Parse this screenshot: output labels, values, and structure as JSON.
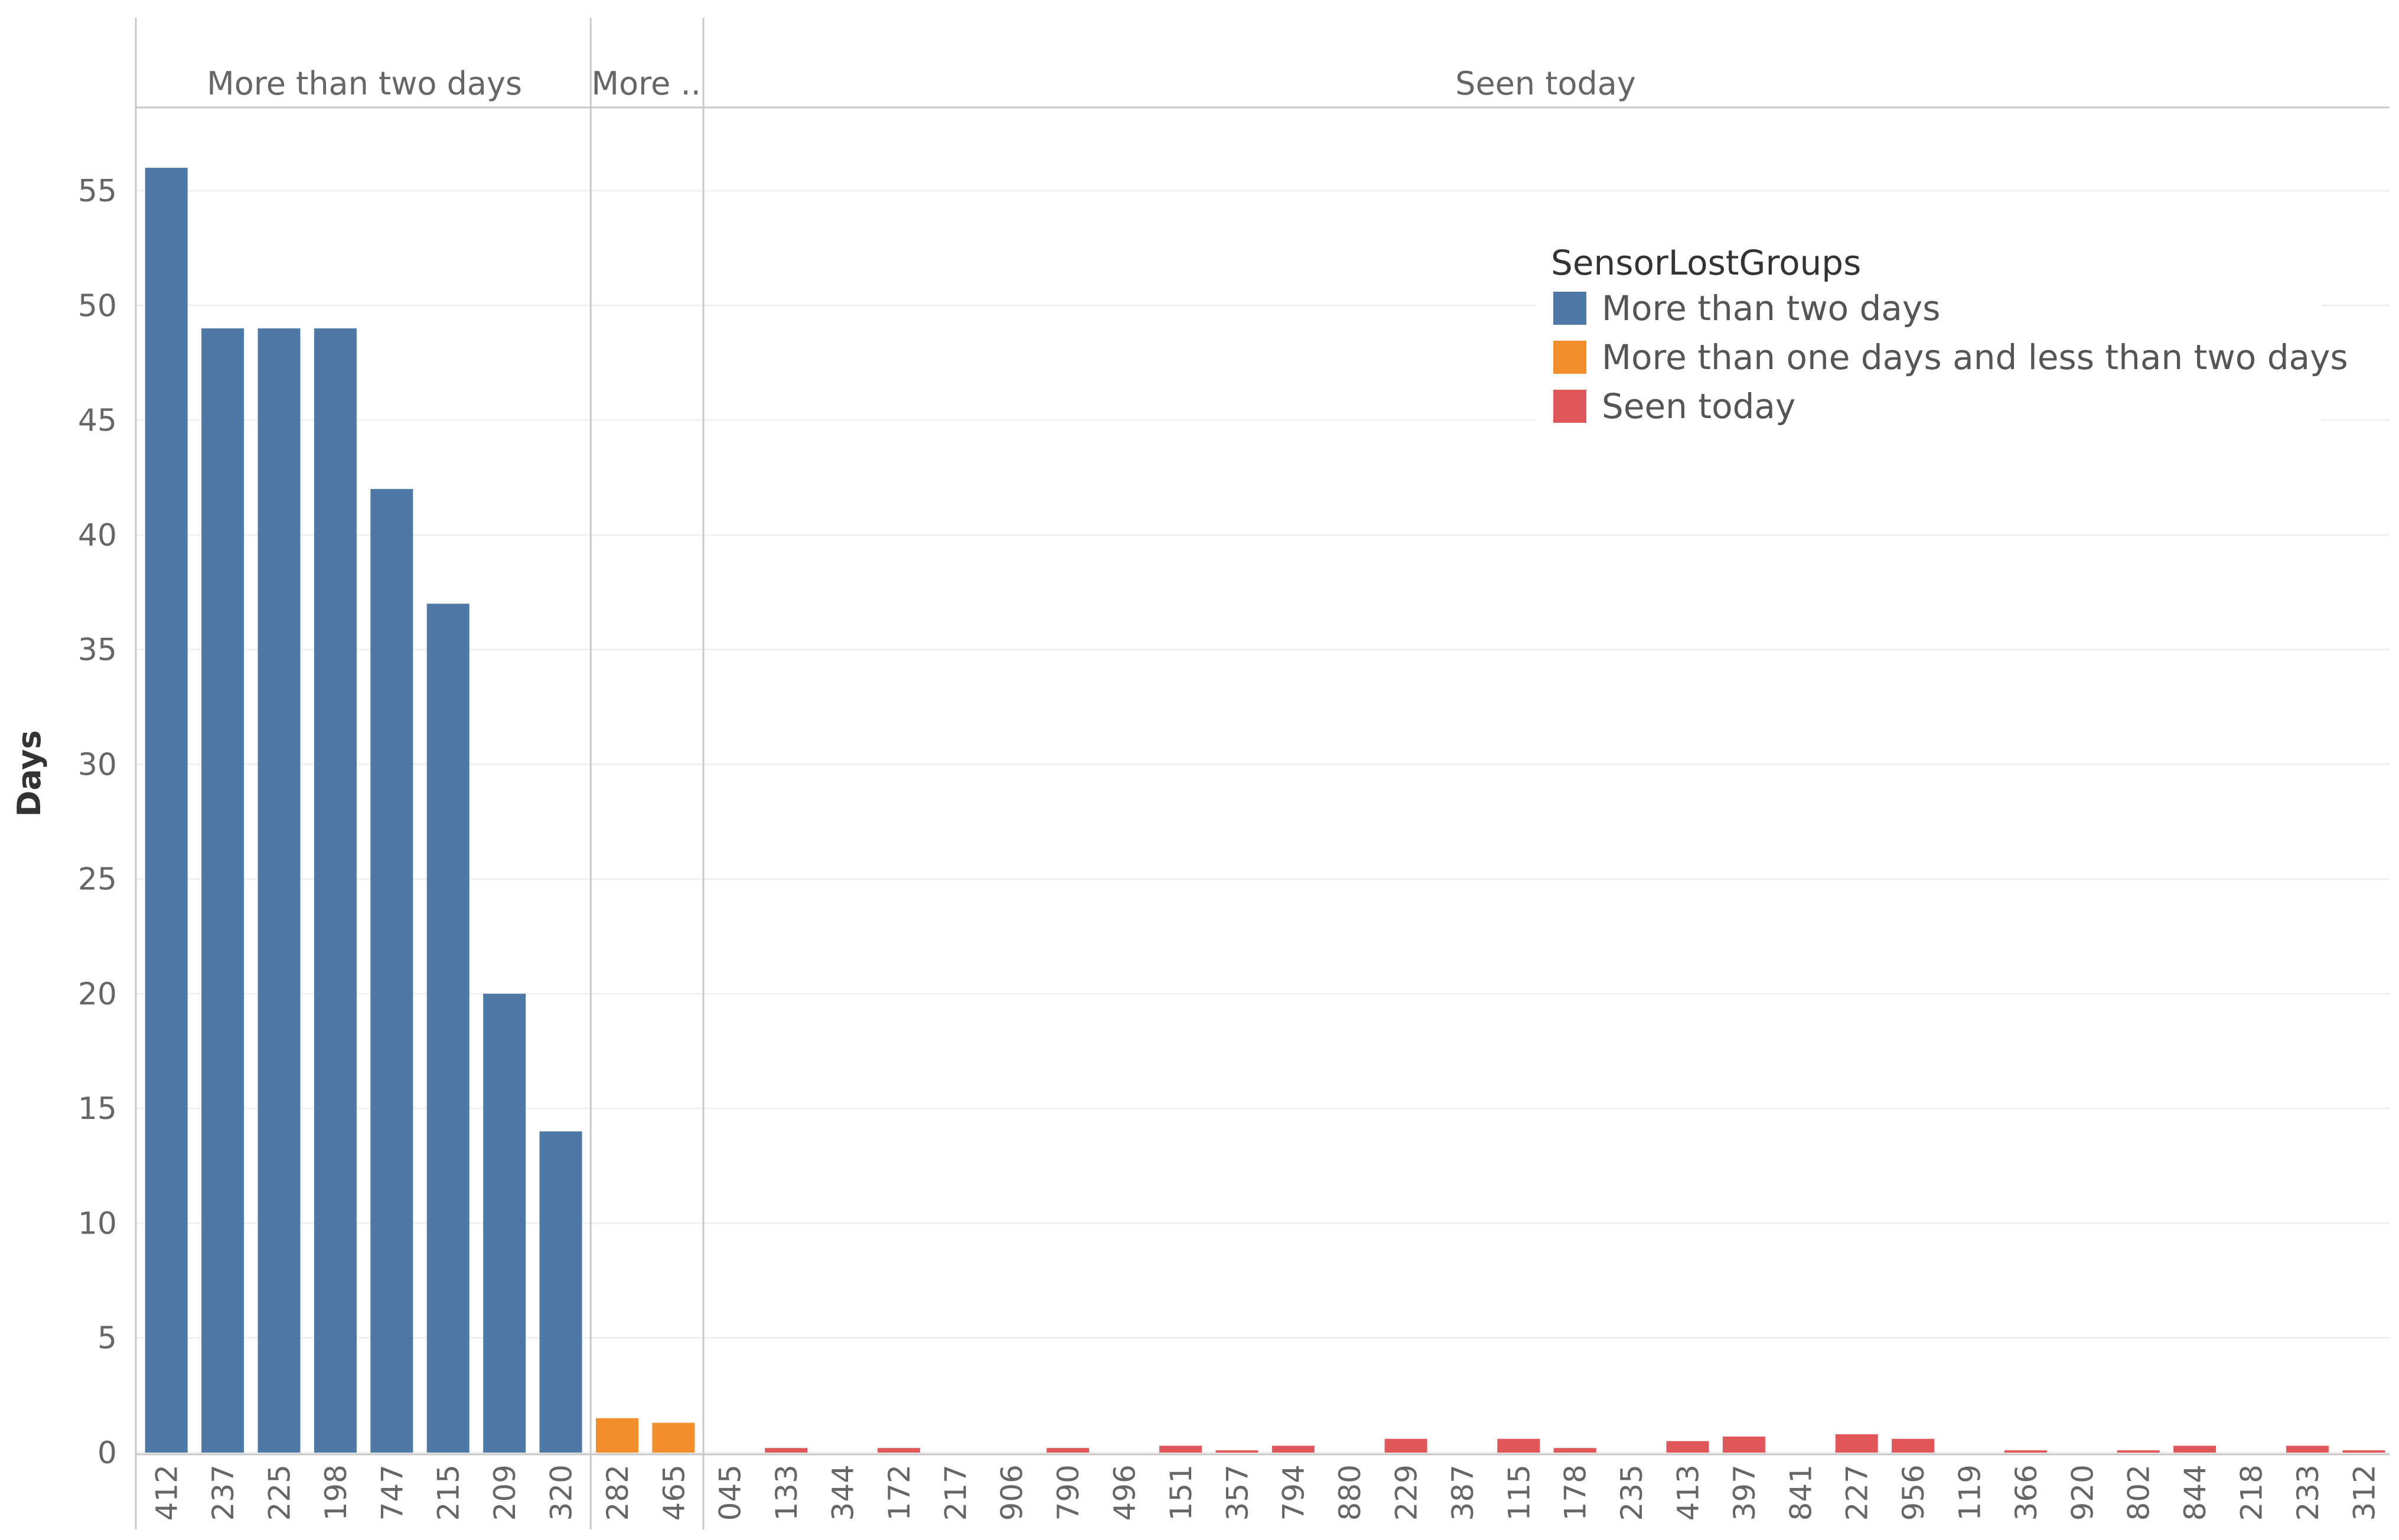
{
  "chart_data": {
    "type": "bar",
    "ylabel": "Days",
    "xlabel": "",
    "ylim": [
      0,
      58
    ],
    "yticks": [
      0,
      5,
      10,
      15,
      20,
      25,
      30,
      35,
      40,
      45,
      50,
      55
    ],
    "grid": true,
    "legend_position": "top-right",
    "legend": {
      "title": "SensorLostGroups",
      "entries": [
        {
          "label": "More than two days",
          "color": "#4e79a7"
        },
        {
          "label": "More than one days and less than two days",
          "color": "#f28e2b"
        },
        {
          "label": "Seen today",
          "color": "#e15759"
        }
      ]
    },
    "panels": [
      {
        "header": "More than two days",
        "color": "#4e79a7",
        "categories": [
          "412",
          "237",
          "225",
          "198",
          "747",
          "215",
          "209",
          "320"
        ],
        "values": [
          56,
          49,
          49,
          49,
          42,
          37,
          20,
          14
        ]
      },
      {
        "header": "More ..",
        "color": "#f28e2b",
        "categories": [
          "282",
          "465"
        ],
        "values": [
          1.5,
          1.3
        ]
      },
      {
        "header": "Seen today",
        "color": "#e15759",
        "categories": [
          "045",
          "133",
          "344",
          "172",
          "217",
          "906",
          "790",
          "496",
          "151",
          "357",
          "794",
          "880",
          "229",
          "387",
          "115",
          "178",
          "235",
          "413",
          "397",
          "841",
          "227",
          "956",
          "119",
          "366",
          "920",
          "802",
          "844",
          "218",
          "233",
          "312"
        ],
        "values": [
          0,
          0.2,
          0,
          0.2,
          0,
          0,
          0.2,
          0,
          0.3,
          0.1,
          0.3,
          0,
          0.6,
          0,
          0.6,
          0.2,
          0,
          0.5,
          0.7,
          0,
          0.8,
          0.6,
          0,
          0.1,
          0,
          0.1,
          0.3,
          0,
          0.3,
          0.1
        ]
      }
    ]
  }
}
